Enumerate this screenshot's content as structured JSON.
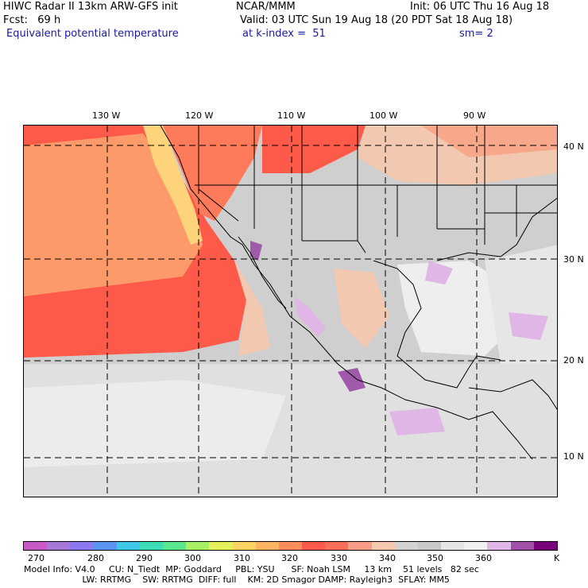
{
  "header": {
    "line1_left": "HIWC Radar II 13km ARW-GFS init",
    "line1_mid": "NCAR/MMM",
    "line1_right": "Init: 06 UTC Thu 16 Aug 18",
    "line2_left": "Fcst:   69 h",
    "line2_right": "Valid: 03 UTC Sun 19 Aug 18 (20 PDT Sat 18 Aug 18)",
    "line3_left": "Equivalent potential temperature",
    "line3_mid": "at k-index =  51",
    "line3_right": "sm= 2"
  },
  "map": {
    "lon_labels": [
      "130 W",
      "120 W",
      "110 W",
      "100 W",
      "90 W"
    ],
    "lat_labels": [
      "40 N",
      "30 N",
      "20 N",
      "10 N"
    ],
    "colors": {
      "ocean_warm": "#fe5a4a",
      "ocean_orange": "#fd9a6a",
      "ocean_yellow": "#ffd37a",
      "gray": "#cfcfcf",
      "lightgray": "#e6e6e6",
      "purple_light": "#e0b6e6",
      "purple": "#a05aaa",
      "tan": "#f2c9b0"
    }
  },
  "colorbar": {
    "colors": [
      "#c85ac8",
      "#a878d8",
      "#8c78f0",
      "#5a96f0",
      "#3cc8e6",
      "#3cdcb4",
      "#5ae68c",
      "#aaf064",
      "#e6f05a",
      "#ffd264",
      "#ffb464",
      "#ff8c5a",
      "#fe5a4a",
      "#fa6e5a",
      "#f89e86",
      "#f6c8b0",
      "#d2d2d2",
      "#c8c8c8",
      "#e6e6e6",
      "#f0f0f0",
      "#e0b6e6",
      "#a050a8",
      "#780078"
    ],
    "labels": [
      "270",
      "280",
      "290",
      "300",
      "310",
      "320",
      "330",
      "340",
      "350",
      "360"
    ],
    "unit": "K"
  },
  "footer": {
    "line1": "Model Info: V4.0     CU: N_Tiedt  MP: Goddard     PBL: YSU      SF: Noah LSM     13 km    51 levels   82 sec",
    "line2": "                     LW: RRTMG    SW: RRTMG  DIFF: full    KM: 2D Smagor DAMP: Rayleigh3  SFLAY: MM5"
  }
}
